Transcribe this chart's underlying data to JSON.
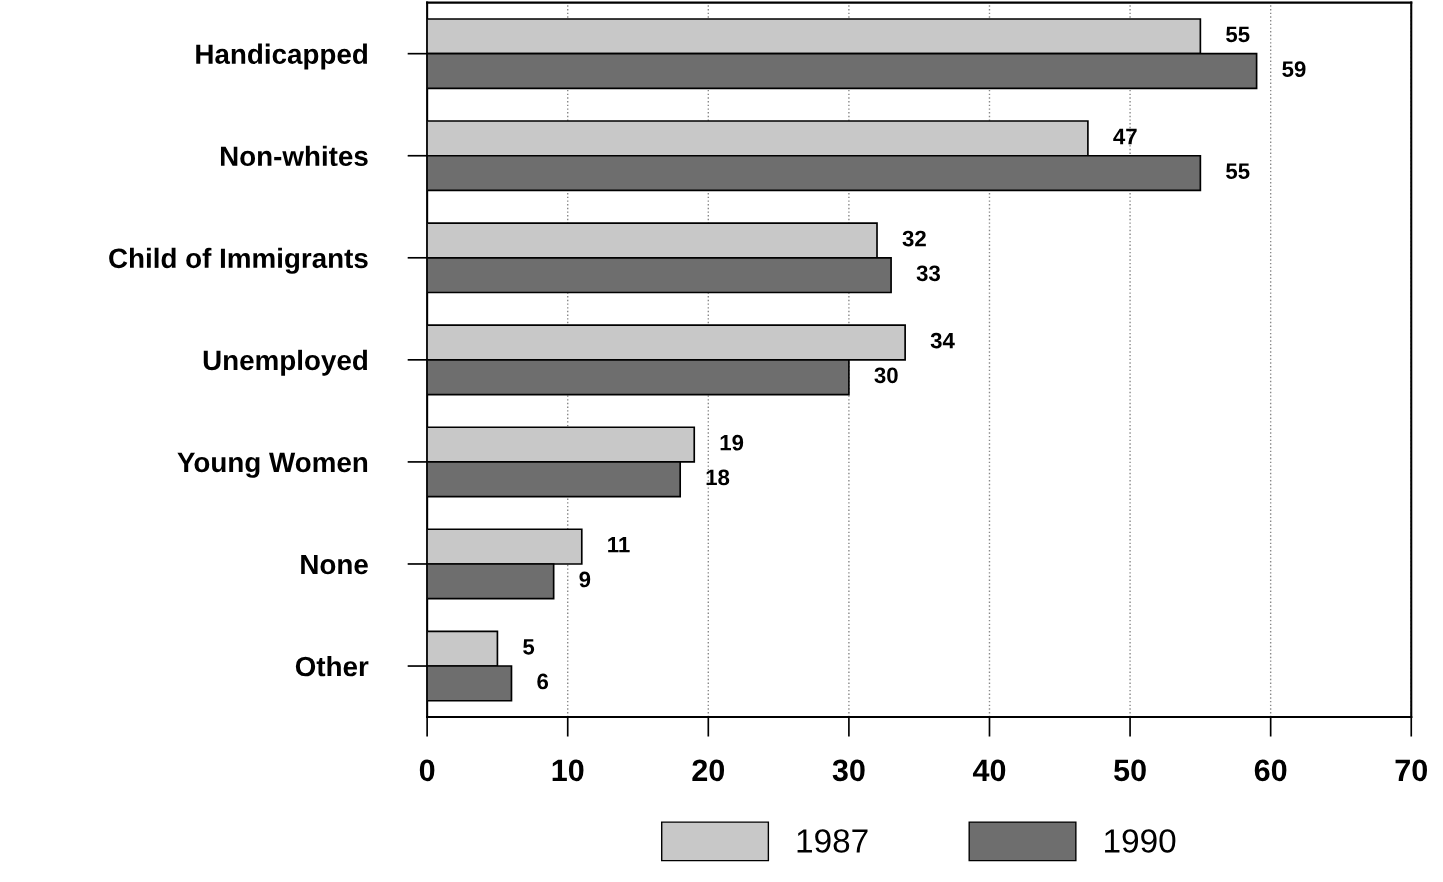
{
  "chart_data": {
    "type": "bar",
    "orientation": "horizontal",
    "categories": [
      "Handicapped",
      "Non-whites",
      "Child of Immigrants",
      "Unemployed",
      "Young Women",
      "None",
      "Other"
    ],
    "series": [
      {
        "name": "1987",
        "color": "#c8c8c8",
        "values": [
          55,
          47,
          32,
          34,
          19,
          11,
          5
        ]
      },
      {
        "name": "1990",
        "color": "#6e6e6e",
        "values": [
          59,
          55,
          33,
          30,
          18,
          9,
          6
        ]
      }
    ],
    "xlim": [
      0,
      70
    ],
    "xticks": [
      0,
      10,
      20,
      30,
      40,
      50,
      60,
      70
    ],
    "grid": "x",
    "legend": "bottom",
    "data_labels": true
  }
}
